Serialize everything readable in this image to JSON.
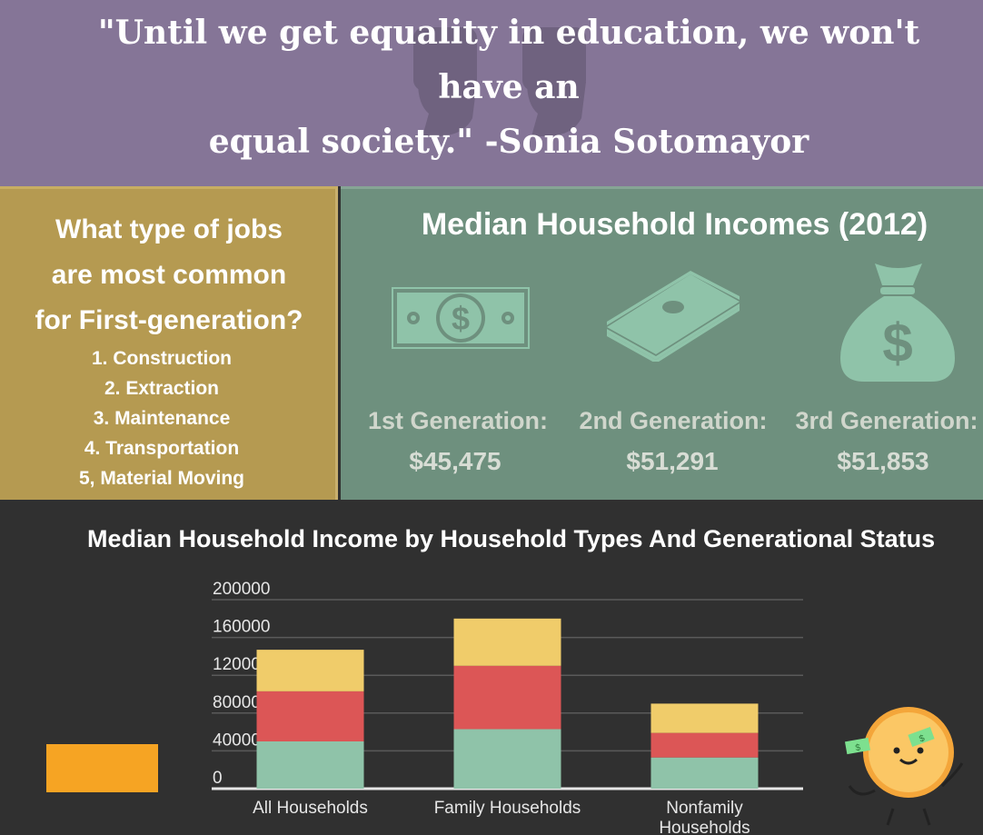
{
  "quote": {
    "line1": "\"Until we get equality in education, we won't have an",
    "line2": "equal society.\" -Sonia Sotomayor"
  },
  "jobs": {
    "title_lines": [
      "What type of jobs",
      "are most common",
      "for First-generation?"
    ],
    "items": [
      "1. Construction",
      "2. Extraction",
      "3. Maintenance",
      "4. Transportation",
      "5, Material Moving"
    ]
  },
  "income": {
    "title": "Median Household Incomes (2012)",
    "generations": [
      {
        "label": "1st Generation:",
        "value": "$45,475",
        "icon": "cash-bill-icon"
      },
      {
        "label": "2nd Generation:",
        "value": "$51,291",
        "icon": "cash-stack-icon"
      },
      {
        "label": "3rd Generation:",
        "value": "$51,853",
        "icon": "money-bag-icon"
      }
    ]
  },
  "colors": {
    "quote_bg": "#857597",
    "jobs_bg": "#b59a51",
    "income_bg": "#6e907e",
    "series_1": "#8fc3a9",
    "series_2": "#dc5656",
    "series_3": "#f0cc6a"
  },
  "chart_data": {
    "type": "bar",
    "stacked": true,
    "title": "Median Household Income by Household Types And Generational Status",
    "categories": [
      "All Households",
      "Family Households",
      "Nonfamily Households"
    ],
    "series": [
      {
        "values": [
          50000,
          63000,
          33000
        ]
      },
      {
        "values": [
          53000,
          67000,
          26000
        ]
      },
      {
        "values": [
          44000,
          50000,
          31000
        ]
      }
    ],
    "ylim": [
      0,
      200000
    ],
    "yticks": [
      "200000",
      "160000",
      "120000",
      "80000",
      "40000",
      "0"
    ],
    "grid": true,
    "legend": "none"
  }
}
